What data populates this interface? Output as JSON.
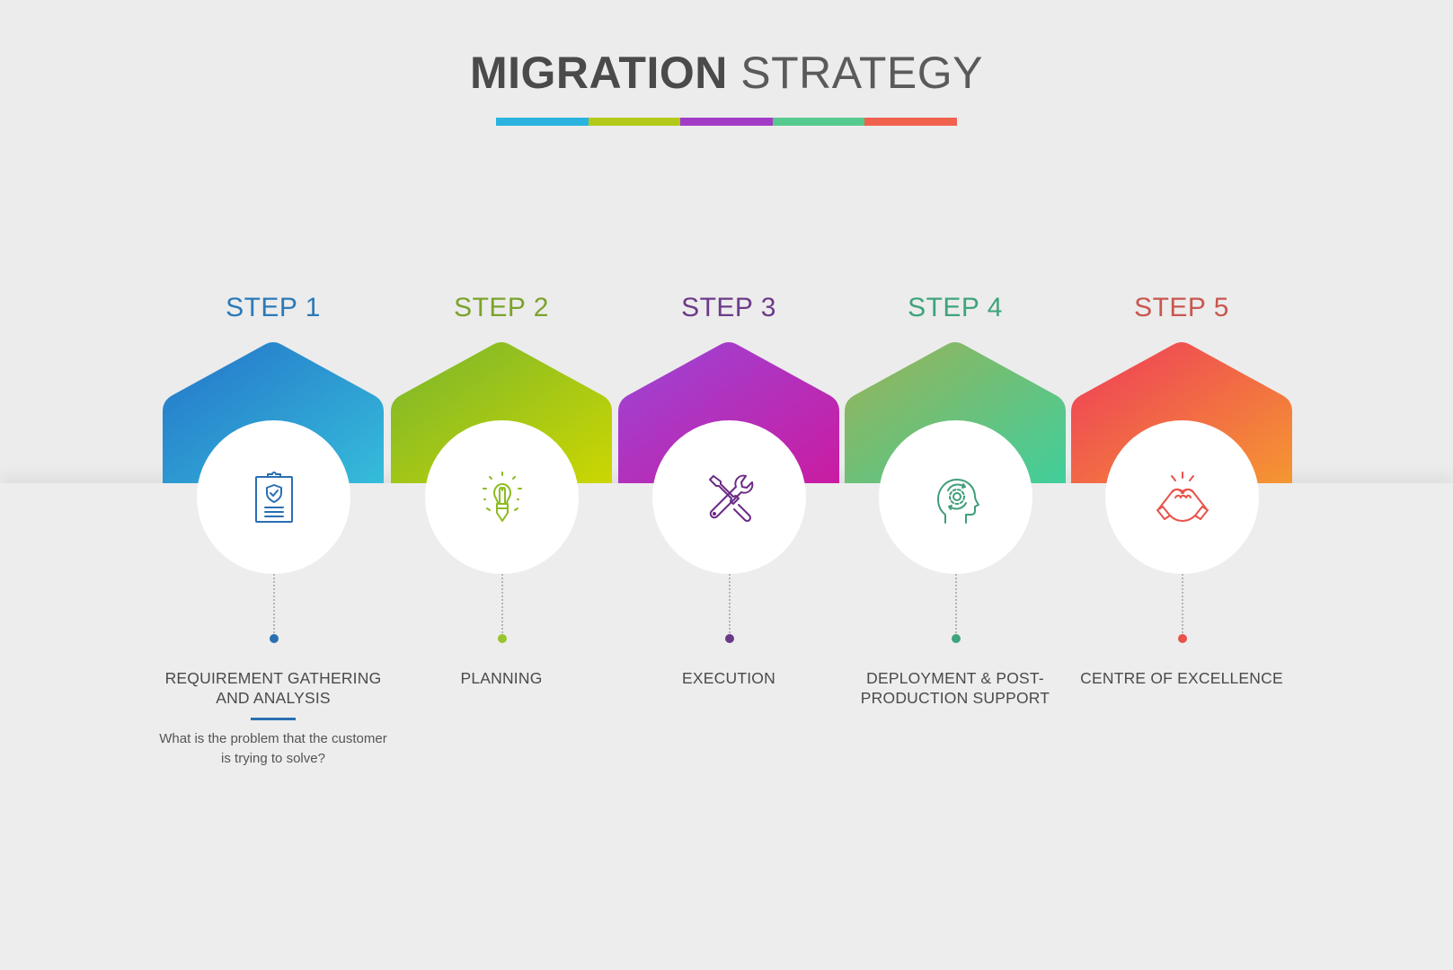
{
  "title": {
    "bold": "MIGRATION",
    "light": "STRATEGY"
  },
  "title_bar_colors": [
    "#2ab3de",
    "#b3c91a",
    "#a23cc7",
    "#56c98e",
    "#f0614e"
  ],
  "steps": [
    {
      "label": "STEP 1",
      "label_color": "#2a7ab8",
      "gradient": [
        "#2474c9",
        "#36bfdb"
      ],
      "icon": "clipboard-shield-icon",
      "icon_color": "#2a6fb3",
      "title": "REQUIREMENT GATHERING AND ANALYSIS",
      "dot_color": "#2a6fb3",
      "description": "What is the problem that the customer is trying to solve?",
      "underline_color": "#2a6fb3"
    },
    {
      "label": "STEP 2",
      "label_color": "#7aa32a",
      "gradient": [
        "#78b52e",
        "#cfd800"
      ],
      "icon": "lightbulb-pencil-icon",
      "icon_color": "#8dbb22",
      "title": "PLANNING",
      "dot_color": "#9ac42b",
      "description": "",
      "underline_color": ""
    },
    {
      "label": "STEP 3",
      "label_color": "#6d3a8a",
      "gradient": [
        "#9a46d6",
        "#cc1aa0"
      ],
      "icon": "wrench-screwdriver-icon",
      "icon_color": "#6b2a86",
      "title": "EXECUTION",
      "dot_color": "#6b3a86",
      "description": "",
      "underline_color": ""
    },
    {
      "label": "STEP 4",
      "label_color": "#3ea47b",
      "gradient": [
        "#9ab256",
        "#3ecf9e"
      ],
      "icon": "head-gear-icon",
      "icon_color": "#3f9e78",
      "title": "DEPLOYMENT & POST-PRODUCTION SUPPORT",
      "dot_color": "#3fa37c",
      "description": "",
      "underline_color": ""
    },
    {
      "label": "STEP 5",
      "label_color": "#c9574e",
      "gradient": [
        "#ee3b5a",
        "#f59a30"
      ],
      "icon": "handshake-icon",
      "icon_color": "#e8524a",
      "title": "CENTRE OF EXCELLENCE",
      "dot_color": "#e8524a",
      "description": "",
      "underline_color": ""
    }
  ]
}
